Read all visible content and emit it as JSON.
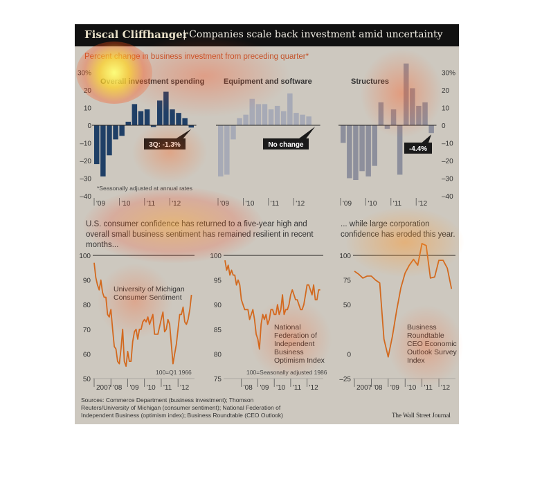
{
  "header": {
    "title": "Fiscal Cliffhanger",
    "separator": "|",
    "subtitle": "Companies scale back investment amid uncertainty"
  },
  "top_panel": {
    "subtitle": "Percent change in business investment from preceding quarter*",
    "footnote": "*Seasonally adjusted at annual rates",
    "colors": {
      "overall": "#1f3f66",
      "equipment": "#a7aab6",
      "structures": "#8d8f9c",
      "zero_line": "#222222",
      "callout_bg": "#1a1a1a"
    }
  },
  "bottom_headings": {
    "left": "U.S. consumer confidence has returned to a five-year high and overall small business sentiment has remained resilient in recent months...",
    "right": "... while large corporation confidence has eroded this year."
  },
  "footer": {
    "sources": "Sources: Commerce Department (business investment); Thomson Reuters/University of Michigan (consumer sentiment); National Federation of Independent Business (optimism index); Business Roundtable (CEO Outlook)",
    "credit": "The Wall Street Journal"
  },
  "chart_data": [
    {
      "type": "bar",
      "title": "Overall investment spending",
      "ylim": [
        -40,
        30
      ],
      "yticks": [
        -40,
        -30,
        -20,
        -10,
        0,
        10,
        20,
        30
      ],
      "ytick_labels": [
        "–40",
        "–30",
        "–20",
        "–10",
        "0",
        "10",
        "20",
        "30%"
      ],
      "year_labels": [
        "'09",
        "'10",
        "'11",
        "'12"
      ],
      "values": [
        -22,
        -29,
        -17,
        -8,
        -6,
        2,
        12,
        8,
        9,
        -1,
        14,
        19,
        9,
        7,
        4,
        -1.3
      ],
      "callout": "3Q: -1.3%"
    },
    {
      "type": "bar",
      "title": "Equipment and software",
      "ylim": [
        -40,
        30
      ],
      "year_labels": [
        "'09",
        "'10",
        "'11",
        "'12"
      ],
      "values": [
        -29,
        -28,
        -8,
        4,
        6,
        15,
        12,
        12,
        9,
        11,
        8,
        18,
        7,
        6,
        5,
        0
      ],
      "callout": "No change"
    },
    {
      "type": "bar",
      "title": "Structures",
      "ylim": [
        -40,
        30
      ],
      "yticks": [
        -40,
        -30,
        -20,
        -10,
        0,
        10,
        20,
        30
      ],
      "ytick_labels": [
        "–40",
        "–30",
        "–20",
        "–10",
        "0",
        "10",
        "20",
        "30%"
      ],
      "year_labels": [
        "'09",
        "'10",
        "'11",
        "'12"
      ],
      "values": [
        -10,
        -30,
        -31,
        -26,
        -29,
        -23,
        13,
        -2,
        9,
        -28,
        35,
        21,
        11,
        13,
        -4.4
      ],
      "callout": "-4.4%"
    },
    {
      "type": "line",
      "title": "University of Michigan Consumer Sentiment",
      "note": "100=Q1 1966",
      "ylim": [
        50,
        100
      ],
      "yticks": [
        50,
        60,
        70,
        80,
        90,
        100
      ],
      "ytick_labels": [
        "50",
        "60",
        "70",
        "80",
        "90",
        "100"
      ],
      "year_labels": [
        "2007",
        "'08",
        "'09",
        "'10",
        "'11",
        "'12"
      ],
      "xlim": [
        2007,
        2012.9
      ],
      "x": [
        2007.0,
        2007.1,
        2007.2,
        2007.3,
        2007.4,
        2007.5,
        2007.6,
        2007.7,
        2007.8,
        2007.9,
        2008.0,
        2008.1,
        2008.2,
        2008.3,
        2008.4,
        2008.5,
        2008.6,
        2008.7,
        2008.8,
        2008.9,
        2009.0,
        2009.1,
        2009.2,
        2009.3,
        2009.4,
        2009.5,
        2009.6,
        2009.7,
        2009.8,
        2009.9,
        2010.0,
        2010.1,
        2010.2,
        2010.3,
        2010.4,
        2010.5,
        2010.6,
        2010.7,
        2010.8,
        2010.9,
        2011.0,
        2011.1,
        2011.2,
        2011.3,
        2011.4,
        2011.5,
        2011.6,
        2011.7,
        2011.8,
        2011.9,
        2012.0,
        2012.1,
        2012.2,
        2012.3,
        2012.4,
        2012.5,
        2012.6,
        2012.7,
        2012.8
      ],
      "values": [
        97,
        91,
        88,
        86,
        90,
        85,
        83,
        83,
        76,
        75,
        78,
        70,
        63,
        62,
        57,
        56,
        62,
        70,
        57,
        55,
        61,
        57,
        57,
        65,
        69,
        70,
        66,
        70,
        70,
        73,
        74,
        73,
        75,
        72,
        74,
        76,
        68,
        68,
        68,
        71,
        74,
        77,
        69,
        70,
        74,
        72,
        64,
        56,
        60,
        64,
        70,
        76,
        76,
        79,
        73,
        72,
        74,
        78,
        84
      ]
    },
    {
      "type": "line",
      "title": "National Federation of Independent Business Optimism Index",
      "note": "100=Seasonally adjusted 1986",
      "ylim": [
        75,
        100
      ],
      "yticks": [
        75,
        80,
        85,
        90,
        95,
        100
      ],
      "ytick_labels": [
        "75",
        "80",
        "85",
        "90",
        "95",
        "100"
      ],
      "year_labels": [
        "'08",
        "'09",
        "'10",
        "'11",
        "'12"
      ],
      "xlim": [
        2007,
        2012.9
      ],
      "x": [
        2007.0,
        2007.1,
        2007.2,
        2007.3,
        2007.4,
        2007.5,
        2007.6,
        2007.7,
        2007.8,
        2007.9,
        2008.0,
        2008.1,
        2008.2,
        2008.3,
        2008.4,
        2008.5,
        2008.6,
        2008.7,
        2008.8,
        2008.9,
        2009.0,
        2009.1,
        2009.2,
        2009.3,
        2009.4,
        2009.5,
        2009.6,
        2009.7,
        2009.8,
        2009.9,
        2010.0,
        2010.1,
        2010.2,
        2010.3,
        2010.4,
        2010.5,
        2010.6,
        2010.7,
        2010.8,
        2010.9,
        2011.0,
        2011.1,
        2011.2,
        2011.3,
        2011.4,
        2011.5,
        2011.6,
        2011.7,
        2011.8,
        2011.9,
        2012.0,
        2012.1,
        2012.2,
        2012.3,
        2012.4,
        2012.5,
        2012.6,
        2012.7,
        2012.8
      ],
      "values": [
        99,
        97,
        98,
        96,
        97,
        96,
        96,
        94,
        95,
        94,
        91,
        90,
        89,
        89,
        89,
        87,
        88,
        89,
        87,
        84,
        83,
        81,
        86,
        88,
        87,
        88,
        86,
        87,
        89,
        89,
        88,
        88,
        90,
        88,
        89,
        92,
        88,
        89,
        89,
        90,
        92,
        93,
        92,
        91,
        91,
        90,
        89,
        89,
        90,
        92,
        94,
        94,
        93,
        92,
        94,
        91,
        91,
        93,
        93
      ]
    },
    {
      "type": "line",
      "title": "Business Roundtable CEO Economic Outlook Survey Index",
      "ylim": [
        -25,
        100
      ],
      "yticks": [
        -25,
        0,
        50,
        75,
        100
      ],
      "ytick_labels": [
        "–25",
        "0",
        "50",
        "75",
        "100"
      ],
      "year_labels": [
        "2007",
        "'08",
        "'09",
        "'10",
        "'11",
        "'12"
      ],
      "xlim": [
        2007,
        2012.9
      ],
      "x": [
        2007.0,
        2007.25,
        2007.5,
        2007.75,
        2008.0,
        2008.25,
        2008.5,
        2008.75,
        2009.0,
        2009.25,
        2009.5,
        2009.75,
        2010.0,
        2010.25,
        2010.5,
        2010.75,
        2011.0,
        2011.25,
        2011.5,
        2011.75,
        2012.0,
        2012.25,
        2012.5,
        2012.75
      ],
      "values": [
        84,
        81,
        77,
        79,
        79,
        75,
        72,
        15,
        -3,
        18,
        44,
        67,
        82,
        90,
        96,
        90,
        112,
        110,
        77,
        78,
        95,
        95,
        87,
        66
      ]
    }
  ]
}
